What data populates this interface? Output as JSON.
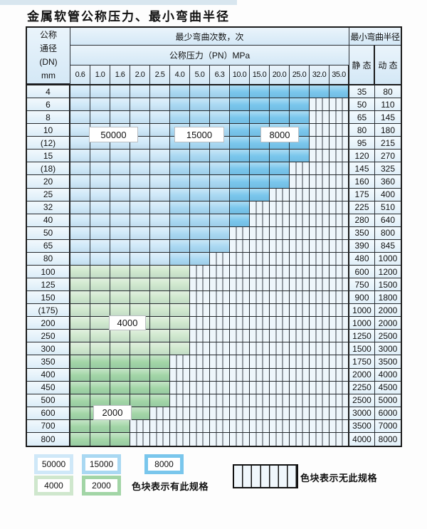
{
  "title": "金属软管公称压力、最小弯曲半径",
  "table": {
    "corner_lines": [
      "公称",
      "通径",
      "(DN)",
      "mm"
    ],
    "bend_times_header": "最少弯曲次数，次",
    "pressure_header": "公称压力（PN）MPa",
    "radius_header": "最小弯曲半径",
    "static_header": "静 态",
    "dynamic_header": "动 态",
    "pressure_columns": [
      "0.6",
      "1.0",
      "1.6",
      "2.0",
      "2.5",
      "4.0",
      "5.0",
      "6.3",
      "10.0",
      "15.0",
      "20.0",
      "25.0",
      "32.0",
      "35.0"
    ],
    "rows": [
      {
        "dn": "4",
        "spec_count": 14,
        "zone": "blue",
        "static": "35",
        "dynamic": "80"
      },
      {
        "dn": "6",
        "spec_count": 12,
        "zone": "blue",
        "static": "50",
        "dynamic": "110"
      },
      {
        "dn": "8",
        "spec_count": 12,
        "zone": "blue",
        "static": "65",
        "dynamic": "145"
      },
      {
        "dn": "10",
        "spec_count": 12,
        "zone": "blue",
        "static": "80",
        "dynamic": "180"
      },
      {
        "dn": "(12)",
        "spec_count": 12,
        "zone": "blue",
        "static": "95",
        "dynamic": "215"
      },
      {
        "dn": "15",
        "spec_count": 12,
        "zone": "blue",
        "static": "120",
        "dynamic": "270"
      },
      {
        "dn": "(18)",
        "spec_count": 11,
        "zone": "blue",
        "static": "145",
        "dynamic": "325"
      },
      {
        "dn": "20",
        "spec_count": 11,
        "zone": "blue",
        "static": "160",
        "dynamic": "360"
      },
      {
        "dn": "25",
        "spec_count": 10,
        "zone": "blue",
        "static": "175",
        "dynamic": "400"
      },
      {
        "dn": "32",
        "spec_count": 9,
        "zone": "blue",
        "static": "225",
        "dynamic": "510"
      },
      {
        "dn": "40",
        "spec_count": 9,
        "zone": "blue",
        "static": "280",
        "dynamic": "640"
      },
      {
        "dn": "50",
        "spec_count": 8,
        "zone": "blue",
        "static": "350",
        "dynamic": "800"
      },
      {
        "dn": "65",
        "spec_count": 8,
        "zone": "blue",
        "static": "390",
        "dynamic": "845"
      },
      {
        "dn": "80",
        "spec_count": 7,
        "zone": "blue",
        "static": "480",
        "dynamic": "1000"
      },
      {
        "dn": "100",
        "spec_count": 6,
        "zone": "green_light",
        "static": "600",
        "dynamic": "1200"
      },
      {
        "dn": "125",
        "spec_count": 6,
        "zone": "green_light",
        "static": "750",
        "dynamic": "1500"
      },
      {
        "dn": "150",
        "spec_count": 6,
        "zone": "green_light",
        "static": "900",
        "dynamic": "1800"
      },
      {
        "dn": "(175)",
        "spec_count": 6,
        "zone": "green_light",
        "static": "1000",
        "dynamic": "2000"
      },
      {
        "dn": "200",
        "spec_count": 6,
        "zone": "green_light",
        "static": "1000",
        "dynamic": "2000"
      },
      {
        "dn": "250",
        "spec_count": 6,
        "zone": "green_light",
        "static": "1250",
        "dynamic": "2500"
      },
      {
        "dn": "300",
        "spec_count": 6,
        "zone": "green_light",
        "static": "1500",
        "dynamic": "3000"
      },
      {
        "dn": "350",
        "spec_count": 5,
        "zone": "green_mid",
        "static": "1750",
        "dynamic": "3500"
      },
      {
        "dn": "400",
        "spec_count": 5,
        "zone": "green_mid",
        "static": "2000",
        "dynamic": "4000"
      },
      {
        "dn": "450",
        "spec_count": 5,
        "zone": "green_mid",
        "static": "2250",
        "dynamic": "4500"
      },
      {
        "dn": "500",
        "spec_count": 5,
        "zone": "green_mid",
        "static": "2500",
        "dynamic": "5000"
      },
      {
        "dn": "600",
        "spec_count": 4,
        "zone": "green_mid",
        "static": "3000",
        "dynamic": "6000"
      },
      {
        "dn": "700",
        "spec_count": 3,
        "zone": "green_mid",
        "static": "3500",
        "dynamic": "7000"
      },
      {
        "dn": "800",
        "spec_count": 3,
        "zone": "green_mid",
        "static": "4000",
        "dynamic": "8000"
      }
    ],
    "blue_shade_groups": {
      "light_cols": "0.6-2.5",
      "mid_cols": "4.0-6.3",
      "dark_cols": "10.0-35.0"
    }
  },
  "region_labels": [
    {
      "text": "50000"
    },
    {
      "text": "15000"
    },
    {
      "text": "8000"
    },
    {
      "text": "4000"
    },
    {
      "text": "2000"
    }
  ],
  "legend": {
    "swatches": [
      {
        "label": "50000",
        "type": "blue_light"
      },
      {
        "label": "15000",
        "type": "blue_mid"
      },
      {
        "label": "8000",
        "type": "blue_dark"
      },
      {
        "label": "4000",
        "type": "green_light"
      },
      {
        "label": "2000",
        "type": "green_mid"
      }
    ],
    "has_spec_text": "色块表示有此规格",
    "no_spec_text": "色块表示无此规格"
  },
  "colors": {
    "blue_light": "#cfe8f8",
    "blue_mid": "#a9d8f2",
    "blue_dark": "#79c6ec",
    "green_light": "#cfe7cd",
    "green_mid": "#a2d5a6",
    "no_spec_bg": "#eef6fb"
  }
}
